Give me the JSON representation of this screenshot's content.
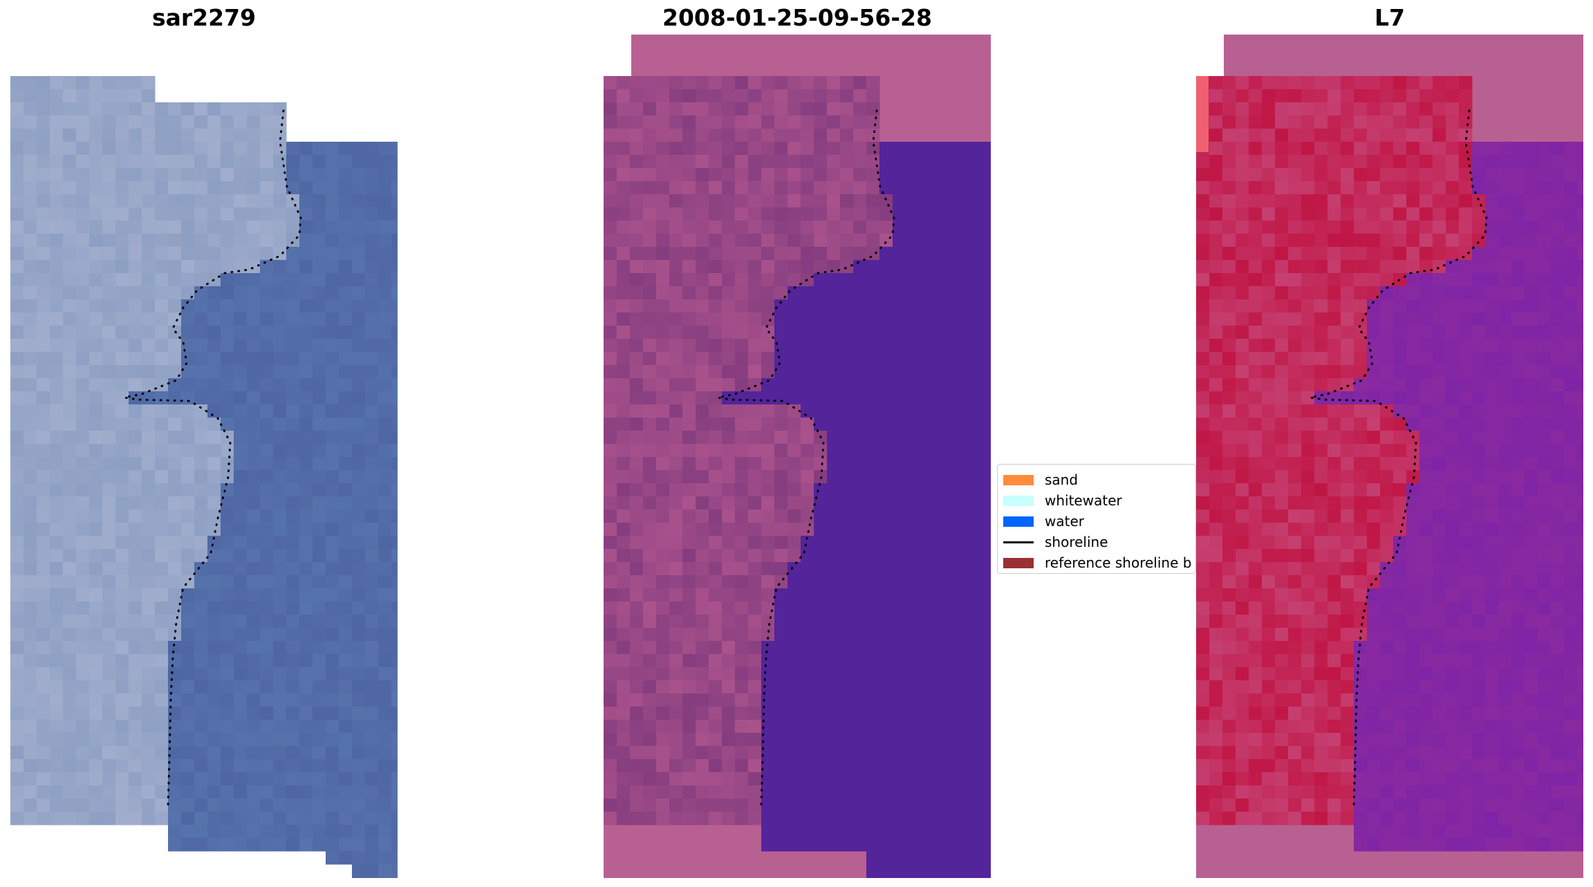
{
  "panels": [
    {
      "title": "sar2279",
      "style": "rgb",
      "fill": "#4e66a3",
      "land": "#8d9fc3",
      "land_alt": "#a6b1cf"
    },
    {
      "title": "2008-01-25-09-56-28",
      "style": "classified",
      "fill": "#54249a",
      "land": "#853d7f",
      "land_alt": "#b2578f",
      "nodata": "#b96093"
    },
    {
      "title": "L7",
      "style": "ndwi",
      "fill": "#8a2aa0",
      "land": "#c01645",
      "land_alt": "#c64a7c",
      "nodata": "#b96093"
    }
  ],
  "legend": {
    "items": [
      {
        "label": "sand",
        "color": "#ff8c3c",
        "kind": "box"
      },
      {
        "label": "whitewater",
        "color": "#c8ffff",
        "kind": "box"
      },
      {
        "label": "water",
        "color": "#0064ff",
        "kind": "box"
      },
      {
        "label": "shoreline",
        "color": "#000000",
        "kind": "line"
      },
      {
        "label": "reference shoreline b",
        "color": "#9a3033",
        "kind": "box"
      }
    ]
  }
}
